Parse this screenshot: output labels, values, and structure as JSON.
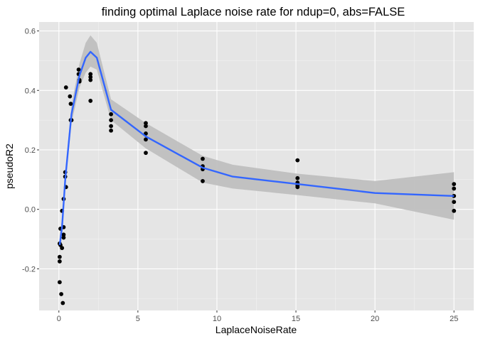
{
  "chart_data": {
    "type": "scatter",
    "title": "finding optimal Laplace noise rate for ndup=0, abs=FALSE",
    "xlabel": "LaplaceNoiseRate",
    "ylabel": "pseudoR2",
    "xlim": [
      -1.25,
      26.25
    ],
    "ylim": [
      -0.34,
      0.63
    ],
    "x_ticks": [
      0,
      5,
      10,
      15,
      20,
      25
    ],
    "y_ticks": [
      -0.2,
      0.0,
      0.2,
      0.4,
      0.6
    ],
    "x_tick_labels": [
      "0",
      "5",
      "10",
      "15",
      "20",
      "25"
    ],
    "y_tick_labels": [
      "-0.2",
      "0.0",
      "0.2",
      "0.4",
      "0.6"
    ],
    "grid": true,
    "legend": "none",
    "colors": {
      "panel": "#e5e5e5",
      "grid_major": "#ffffff",
      "points": "#000000",
      "smooth_line": "#3366ff",
      "confidence_band": "#bfbfbf"
    },
    "points": [
      {
        "x": 0.05,
        "y": -0.115
      },
      {
        "x": 0.05,
        "y": -0.16
      },
      {
        "x": 0.05,
        "y": -0.175
      },
      {
        "x": 0.05,
        "y": -0.245
      },
      {
        "x": 0.1,
        "y": -0.065
      },
      {
        "x": 0.1,
        "y": -0.12
      },
      {
        "x": 0.15,
        "y": -0.285
      },
      {
        "x": 0.2,
        "y": -0.005
      },
      {
        "x": 0.2,
        "y": -0.13
      },
      {
        "x": 0.25,
        "y": -0.315
      },
      {
        "x": 0.3,
        "y": 0.035
      },
      {
        "x": 0.3,
        "y": -0.06
      },
      {
        "x": 0.3,
        "y": -0.085
      },
      {
        "x": 0.3,
        "y": -0.095
      },
      {
        "x": 0.4,
        "y": 0.125
      },
      {
        "x": 0.4,
        "y": 0.11
      },
      {
        "x": 0.45,
        "y": 0.075
      },
      {
        "x": 0.45,
        "y": 0.41
      },
      {
        "x": 0.7,
        "y": 0.38
      },
      {
        "x": 0.75,
        "y": 0.355
      },
      {
        "x": 0.75,
        "y": 0.3
      },
      {
        "x": 0.8,
        "y": 0.3
      },
      {
        "x": 1.25,
        "y": 0.47
      },
      {
        "x": 1.25,
        "y": 0.455
      },
      {
        "x": 1.3,
        "y": 0.435
      },
      {
        "x": 1.3,
        "y": 0.43
      },
      {
        "x": 2.0,
        "y": 0.455
      },
      {
        "x": 2.0,
        "y": 0.445
      },
      {
        "x": 2.0,
        "y": 0.435
      },
      {
        "x": 2.0,
        "y": 0.365
      },
      {
        "x": 3.3,
        "y": 0.32
      },
      {
        "x": 3.3,
        "y": 0.3
      },
      {
        "x": 3.3,
        "y": 0.28
      },
      {
        "x": 3.3,
        "y": 0.265
      },
      {
        "x": 5.5,
        "y": 0.29
      },
      {
        "x": 5.5,
        "y": 0.28
      },
      {
        "x": 5.5,
        "y": 0.255
      },
      {
        "x": 5.5,
        "y": 0.235
      },
      {
        "x": 5.5,
        "y": 0.19
      },
      {
        "x": 9.1,
        "y": 0.17
      },
      {
        "x": 9.1,
        "y": 0.145
      },
      {
        "x": 9.1,
        "y": 0.135
      },
      {
        "x": 9.1,
        "y": 0.095
      },
      {
        "x": 15.1,
        "y": 0.165
      },
      {
        "x": 15.1,
        "y": 0.105
      },
      {
        "x": 15.1,
        "y": 0.09
      },
      {
        "x": 15.1,
        "y": 0.08
      },
      {
        "x": 15.1,
        "y": 0.075
      },
      {
        "x": 25.0,
        "y": 0.085
      },
      {
        "x": 25.0,
        "y": 0.07
      },
      {
        "x": 25.0,
        "y": 0.045
      },
      {
        "x": 25.0,
        "y": 0.025
      },
      {
        "x": 25.0,
        "y": -0.005
      }
    ],
    "smooth": {
      "x": [
        0.05,
        0.2,
        0.4,
        0.8,
        1.3,
        1.7,
        2.0,
        2.4,
        3.3,
        5.5,
        9.1,
        11.0,
        15.1,
        20.0,
        25.0
      ],
      "y": [
        -0.12,
        -0.06,
        0.1,
        0.32,
        0.45,
        0.51,
        0.53,
        0.51,
        0.335,
        0.245,
        0.14,
        0.11,
        0.085,
        0.055,
        0.045
      ],
      "lower": [
        -0.15,
        -0.09,
        0.08,
        0.29,
        0.41,
        0.46,
        0.48,
        0.47,
        0.3,
        0.205,
        0.09,
        0.07,
        0.048,
        0.02,
        -0.035
      ],
      "upper": [
        -0.09,
        -0.03,
        0.12,
        0.35,
        0.49,
        0.56,
        0.585,
        0.56,
        0.37,
        0.29,
        0.18,
        0.15,
        0.12,
        0.095,
        0.125
      ]
    }
  }
}
